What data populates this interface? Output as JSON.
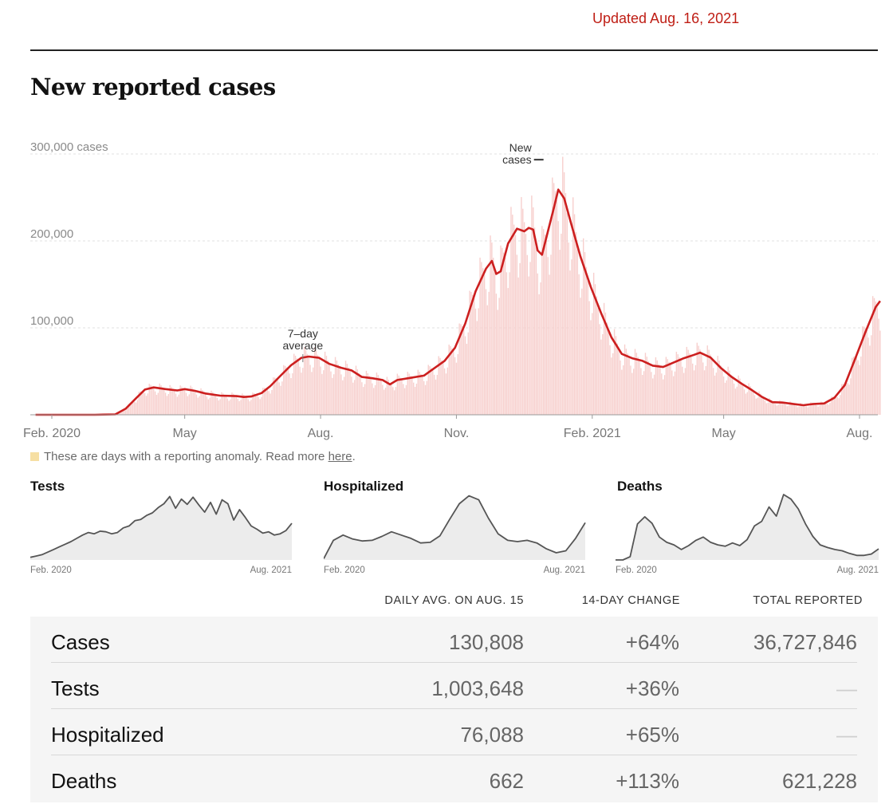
{
  "updated": "Updated Aug. 16, 2021",
  "title": "New reported cases",
  "chart_data": {
    "type": "bar",
    "y_ticks": [
      {
        "value": 300000,
        "label": "300,000 cases"
      },
      {
        "value": 200000,
        "label": "200,000"
      },
      {
        "value": 100000,
        "label": "100,000"
      }
    ],
    "ylim": [
      0,
      300000
    ],
    "x_ticks": [
      {
        "date": "2020-02-01",
        "label": "Feb. 2020"
      },
      {
        "date": "2020-05-01",
        "label": "May"
      },
      {
        "date": "2020-08-01",
        "label": "Aug."
      },
      {
        "date": "2020-11-01",
        "label": "Nov."
      },
      {
        "date": "2021-02-01",
        "label": "Feb. 2021"
      },
      {
        "date": "2021-05-01",
        "label": "May"
      },
      {
        "date": "2021-08-01",
        "label": "Aug."
      }
    ],
    "annotations": [
      {
        "text": [
          "7–day",
          "average"
        ],
        "date": "2020-07-20",
        "value": 66000
      },
      {
        "text": [
          "New",
          "cases"
        ],
        "date": "2020-12-30",
        "value": 298000
      }
    ],
    "series": [
      {
        "name": "7-day average",
        "color": "#cc1f1f",
        "points": [
          [
            "2020-01-21",
            0
          ],
          [
            "2020-03-01",
            0
          ],
          [
            "2020-03-15",
            500
          ],
          [
            "2020-03-22",
            7000
          ],
          [
            "2020-03-29",
            19000
          ],
          [
            "2020-04-04",
            29000
          ],
          [
            "2020-04-10",
            31500
          ],
          [
            "2020-04-18",
            29500
          ],
          [
            "2020-04-26",
            28000
          ],
          [
            "2020-05-01",
            29500
          ],
          [
            "2020-05-08",
            27500
          ],
          [
            "2020-05-15",
            24500
          ],
          [
            "2020-05-25",
            22000
          ],
          [
            "2020-06-05",
            21500
          ],
          [
            "2020-06-10",
            20500
          ],
          [
            "2020-06-15",
            21000
          ],
          [
            "2020-06-22",
            25000
          ],
          [
            "2020-06-28",
            33000
          ],
          [
            "2020-07-05",
            45000
          ],
          [
            "2020-07-12",
            57000
          ],
          [
            "2020-07-19",
            65500
          ],
          [
            "2020-07-24",
            67000
          ],
          [
            "2020-07-31",
            65500
          ],
          [
            "2020-08-07",
            58500
          ],
          [
            "2020-08-15",
            54000
          ],
          [
            "2020-08-22",
            51000
          ],
          [
            "2020-08-29",
            43500
          ],
          [
            "2020-09-05",
            42000
          ],
          [
            "2020-09-12",
            40000
          ],
          [
            "2020-09-17",
            35000
          ],
          [
            "2020-09-22",
            40000
          ],
          [
            "2020-10-01",
            42500
          ],
          [
            "2020-10-10",
            45000
          ],
          [
            "2020-10-17",
            53500
          ],
          [
            "2020-10-24",
            62000
          ],
          [
            "2020-10-31",
            77000
          ],
          [
            "2020-11-07",
            105000
          ],
          [
            "2020-11-14",
            142000
          ],
          [
            "2020-11-21",
            168000
          ],
          [
            "2020-11-25",
            177000
          ],
          [
            "2020-11-28",
            162000
          ],
          [
            "2020-12-01",
            165000
          ],
          [
            "2020-12-06",
            197000
          ],
          [
            "2020-12-12",
            214000
          ],
          [
            "2020-12-17",
            211000
          ],
          [
            "2020-12-20",
            215000
          ],
          [
            "2020-12-23",
            213000
          ],
          [
            "2020-12-26",
            189000
          ],
          [
            "2020-12-29",
            184000
          ],
          [
            "2021-01-02",
            211000
          ],
          [
            "2021-01-06",
            238000
          ],
          [
            "2021-01-09",
            259000
          ],
          [
            "2021-01-13",
            249000
          ],
          [
            "2021-01-18",
            218000
          ],
          [
            "2021-01-24",
            182000
          ],
          [
            "2021-01-31",
            147000
          ],
          [
            "2021-02-07",
            117000
          ],
          [
            "2021-02-14",
            89000
          ],
          [
            "2021-02-21",
            70000
          ],
          [
            "2021-02-28",
            65000
          ],
          [
            "2021-03-07",
            62000
          ],
          [
            "2021-03-14",
            56500
          ],
          [
            "2021-03-21",
            55000
          ],
          [
            "2021-03-28",
            60000
          ],
          [
            "2021-04-04",
            65000
          ],
          [
            "2021-04-11",
            69000
          ],
          [
            "2021-04-15",
            71500
          ],
          [
            "2021-04-22",
            66000
          ],
          [
            "2021-04-29",
            54000
          ],
          [
            "2021-05-06",
            44000
          ],
          [
            "2021-05-13",
            36000
          ],
          [
            "2021-05-20",
            28500
          ],
          [
            "2021-05-27",
            20500
          ],
          [
            "2021-06-03",
            14500
          ],
          [
            "2021-06-10",
            14000
          ],
          [
            "2021-06-17",
            12500
          ],
          [
            "2021-06-24",
            11000
          ],
          [
            "2021-07-01",
            12500
          ],
          [
            "2021-07-08",
            13000
          ],
          [
            "2021-07-15",
            19500
          ],
          [
            "2021-07-22",
            34000
          ],
          [
            "2021-07-29",
            64000
          ],
          [
            "2021-08-05",
            95000
          ],
          [
            "2021-08-12",
            124000
          ],
          [
            "2021-08-15",
            130808
          ]
        ]
      }
    ]
  },
  "anomaly_legend": {
    "text": "These are days with a reporting anomaly. Read more ",
    "link": "here",
    "end": "."
  },
  "small_charts": [
    {
      "title": "Tests",
      "start_label": "Feb. 2020",
      "end_label": "Aug. 2021",
      "ylim": [
        0,
        1.0
      ],
      "values": [
        0.04,
        0.06,
        0.08,
        0.12,
        0.16,
        0.2,
        0.24,
        0.28,
        0.33,
        0.38,
        0.42,
        0.4,
        0.44,
        0.43,
        0.4,
        0.42,
        0.49,
        0.52,
        0.6,
        0.62,
        0.68,
        0.72,
        0.8,
        0.86,
        0.97,
        0.79,
        0.93,
        0.85,
        0.96,
        0.84,
        0.73,
        0.88,
        0.7,
        0.92,
        0.86,
        0.61,
        0.77,
        0.65,
        0.52,
        0.47,
        0.41,
        0.43,
        0.38,
        0.4,
        0.45,
        0.56
      ]
    },
    {
      "title": "Hospitalized",
      "start_label": "Feb. 2020",
      "end_label": "Aug. 2021",
      "ylim": [
        0,
        1.0
      ],
      "values": [
        0.02,
        0.3,
        0.38,
        0.32,
        0.29,
        0.3,
        0.36,
        0.43,
        0.38,
        0.33,
        0.26,
        0.27,
        0.37,
        0.62,
        0.86,
        0.98,
        0.92,
        0.64,
        0.4,
        0.3,
        0.28,
        0.3,
        0.26,
        0.17,
        0.11,
        0.14,
        0.33,
        0.57
      ]
    },
    {
      "title": "Deaths",
      "start_label": "Feb. 2020",
      "end_label": "Aug. 2021",
      "ylim": [
        0,
        1.0
      ],
      "values": [
        0.0,
        0.0,
        0.05,
        0.55,
        0.66,
        0.56,
        0.35,
        0.27,
        0.23,
        0.16,
        0.22,
        0.3,
        0.35,
        0.27,
        0.23,
        0.21,
        0.26,
        0.22,
        0.31,
        0.52,
        0.59,
        0.81,
        0.67,
        1.0,
        0.93,
        0.78,
        0.55,
        0.36,
        0.23,
        0.19,
        0.16,
        0.14,
        0.1,
        0.07,
        0.07,
        0.09,
        0.17
      ]
    }
  ],
  "stats": {
    "headers": [
      "DAILY AVG. ON AUG. 15",
      "14-DAY CHANGE",
      "TOTAL REPORTED"
    ],
    "rows": [
      {
        "name": "Cases",
        "daily": "130,808",
        "change": "+64%",
        "total": "36,727,846"
      },
      {
        "name": "Tests",
        "daily": "1,003,648",
        "change": "+36%",
        "total": "—"
      },
      {
        "name": "Hospitalized",
        "daily": "76,088",
        "change": "+65%",
        "total": "—"
      },
      {
        "name": "Deaths",
        "daily": "662",
        "change": "+113%",
        "total": "621,228"
      }
    ]
  }
}
